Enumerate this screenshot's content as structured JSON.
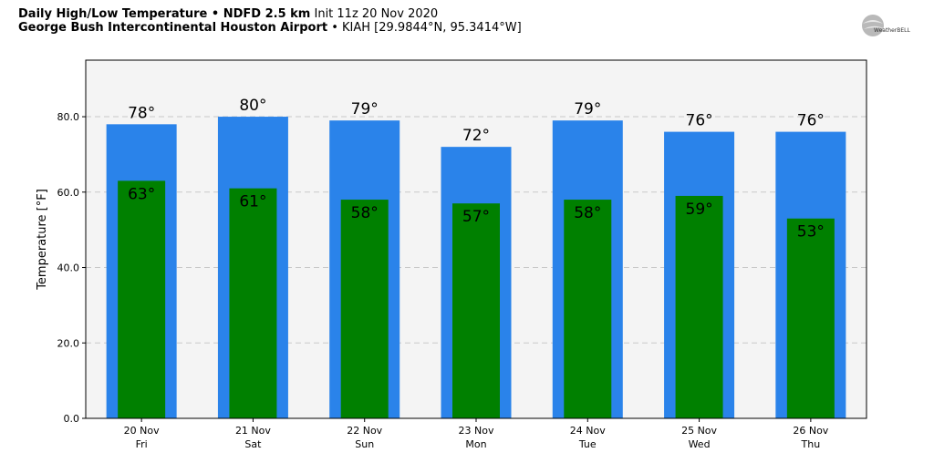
{
  "header": {
    "title_bold": "Daily High/Low Temperature • NDFD 2.5 km",
    "title_rest": " Init 11z 20 Nov 2020",
    "subtitle_bold": "George Bush Intercontinental Houston Airport",
    "subtitle_rest": " • KIAH [29.9844°N, 95.3414°W]"
  },
  "logo": {
    "text": "WeatherBELL",
    "icon": "weatherbell-logo"
  },
  "colors": {
    "high": "#2a83ea",
    "low": "#008000",
    "plot_bg": "#f4f4f4"
  },
  "chart_data": {
    "type": "bar",
    "categories": [
      "20 Nov\nFri",
      "21 Nov\nSat",
      "22 Nov\nSun",
      "23 Nov\nMon",
      "24 Nov\nTue",
      "25 Nov\nWed",
      "26 Nov\nThu"
    ],
    "series": [
      {
        "values": [
          78,
          80,
          79,
          72,
          79,
          76,
          76
        ],
        "labels": [
          "78°",
          "80°",
          "79°",
          "72°",
          "79°",
          "76°",
          "76°"
        ]
      },
      {
        "values": [
          63,
          61,
          58,
          57,
          58,
          59,
          53
        ],
        "labels": [
          "63°",
          "61°",
          "58°",
          "57°",
          "58°",
          "59°",
          "53°"
        ]
      }
    ],
    "ylabel": "Temperature [°F]",
    "yticks": [
      "0.0",
      "20.0",
      "40.0",
      "60.0",
      "80.0"
    ],
    "ylim": [
      0,
      95
    ],
    "grid": true
  }
}
